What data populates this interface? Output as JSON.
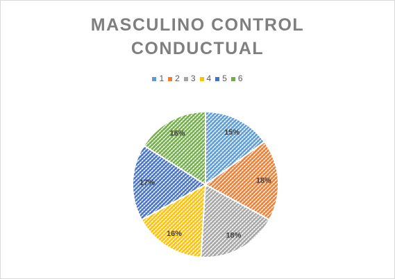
{
  "chart_data": {
    "type": "pie",
    "title": "MASCULINO CONTROL CONDUCTUAL",
    "categories": [
      "1",
      "2",
      "3",
      "4",
      "5",
      "6"
    ],
    "values": [
      15,
      18,
      18,
      16,
      17,
      16
    ],
    "value_labels": [
      "15%",
      "18%",
      "18%",
      "16%",
      "17%",
      "16%"
    ],
    "colors": [
      "#5b9bd5",
      "#ed7d31",
      "#a5a5a5",
      "#ffc000",
      "#4472c4",
      "#70ad47"
    ],
    "legend": "top"
  }
}
